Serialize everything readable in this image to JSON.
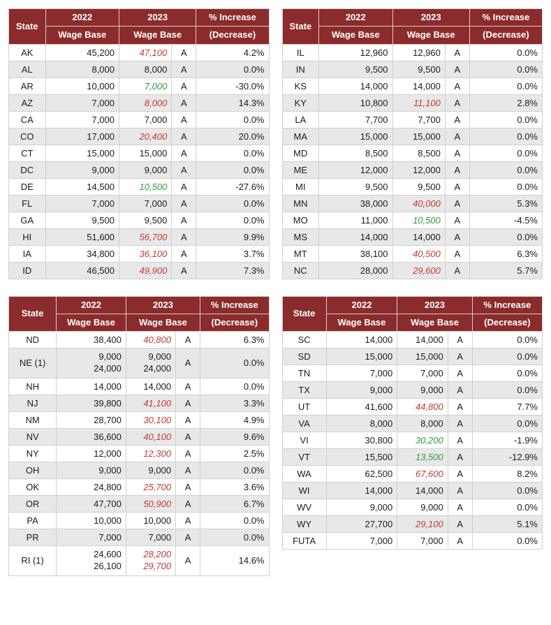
{
  "header": {
    "state": "State",
    "y2022": "2022",
    "wagebase": "Wage Base",
    "y2023": "2023",
    "pct1": "% Increase",
    "pct2": "(Decrease)"
  },
  "colors": {
    "header_bg": "#8c2b2b",
    "header_fg": "#ffffff",
    "row_alt_bg": "#e8e8e8",
    "border": "#d0d0d0",
    "increase_fg": "#c23a2e",
    "decrease_fg": "#2e9c3d",
    "text_fg": "#1a1a1a"
  },
  "tables": [
    [
      {
        "state": "AK",
        "v22": "45,200",
        "v23": "47,100",
        "dir": "up",
        "a": "A",
        "pct": "4.2%"
      },
      {
        "state": "AL",
        "v22": "8,000",
        "v23": "8,000",
        "dir": "",
        "a": "A",
        "pct": "0.0%"
      },
      {
        "state": "AR",
        "v22": "10,000",
        "v23": "7,000",
        "dir": "down",
        "a": "A",
        "pct": "-30.0%"
      },
      {
        "state": "AZ",
        "v22": "7,000",
        "v23": "8,000",
        "dir": "up",
        "a": "A",
        "pct": "14.3%"
      },
      {
        "state": "CA",
        "v22": "7,000",
        "v23": "7,000",
        "dir": "",
        "a": "A",
        "pct": "0.0%"
      },
      {
        "state": "CO",
        "v22": "17,000",
        "v23": "20,400",
        "dir": "up",
        "a": "A",
        "pct": "20.0%"
      },
      {
        "state": "CT",
        "v22": "15,000",
        "v23": "15,000",
        "dir": "",
        "a": "A",
        "pct": "0.0%"
      },
      {
        "state": "DC",
        "v22": "9,000",
        "v23": "9,000",
        "dir": "",
        "a": "A",
        "pct": "0.0%"
      },
      {
        "state": "DE",
        "v22": "14,500",
        "v23": "10,500",
        "dir": "down",
        "a": "A",
        "pct": "-27.6%"
      },
      {
        "state": "FL",
        "v22": "7,000",
        "v23": "7,000",
        "dir": "",
        "a": "A",
        "pct": "0.0%"
      },
      {
        "state": "GA",
        "v22": "9,500",
        "v23": "9,500",
        "dir": "",
        "a": "A",
        "pct": "0.0%"
      },
      {
        "state": "HI",
        "v22": "51,600",
        "v23": "56,700",
        "dir": "up",
        "a": "A",
        "pct": "9.9%"
      },
      {
        "state": "IA",
        "v22": "34,800",
        "v23": "36,100",
        "dir": "up",
        "a": "A",
        "pct": "3.7%"
      },
      {
        "state": "ID",
        "v22": "46,500",
        "v23": "49,900",
        "dir": "up",
        "a": "A",
        "pct": "7.3%"
      }
    ],
    [
      {
        "state": "IL",
        "v22": "12,960",
        "v23": "12,960",
        "dir": "",
        "a": "A",
        "pct": "0.0%"
      },
      {
        "state": "IN",
        "v22": "9,500",
        "v23": "9,500",
        "dir": "",
        "a": "A",
        "pct": "0.0%"
      },
      {
        "state": "KS",
        "v22": "14,000",
        "v23": "14,000",
        "dir": "",
        "a": "A",
        "pct": "0.0%"
      },
      {
        "state": "KY",
        "v22": "10,800",
        "v23": "11,100",
        "dir": "up",
        "a": "A",
        "pct": "2.8%"
      },
      {
        "state": "LA",
        "v22": "7,700",
        "v23": "7,700",
        "dir": "",
        "a": "A",
        "pct": "0.0%"
      },
      {
        "state": "MA",
        "v22": "15,000",
        "v23": "15,000",
        "dir": "",
        "a": "A",
        "pct": "0.0%"
      },
      {
        "state": "MD",
        "v22": "8,500",
        "v23": "8,500",
        "dir": "",
        "a": "A",
        "pct": "0.0%"
      },
      {
        "state": "ME",
        "v22": "12,000",
        "v23": "12,000",
        "dir": "",
        "a": "A",
        "pct": "0.0%"
      },
      {
        "state": "MI",
        "v22": "9,500",
        "v23": "9,500",
        "dir": "",
        "a": "A",
        "pct": "0.0%"
      },
      {
        "state": "MN",
        "v22": "38,000",
        "v23": "40,000",
        "dir": "up",
        "a": "A",
        "pct": "5.3%"
      },
      {
        "state": "MO",
        "v22": "11,000",
        "v23": "10,500",
        "dir": "down",
        "a": "A",
        "pct": "-4.5%"
      },
      {
        "state": "MS",
        "v22": "14,000",
        "v23": "14,000",
        "dir": "",
        "a": "A",
        "pct": "0.0%"
      },
      {
        "state": "MT",
        "v22": "38,100",
        "v23": "40,500",
        "dir": "up",
        "a": "A",
        "pct": "6.3%"
      },
      {
        "state": "NC",
        "v22": "28,000",
        "v23": "29,600",
        "dir": "up",
        "a": "A",
        "pct": "5.7%"
      }
    ],
    [
      {
        "state": "ND",
        "v22": "38,400",
        "v23": "40,800",
        "dir": "up",
        "a": "A",
        "pct": "6.3%"
      },
      {
        "state": "NE (1)",
        "v22": "9,000",
        "v22b": "24,000",
        "v23": "9,000",
        "v23b": "24,000",
        "dir": "",
        "a": "A",
        "pct": "0.0%"
      },
      {
        "state": "NH",
        "v22": "14,000",
        "v23": "14,000",
        "dir": "",
        "a": "A",
        "pct": "0.0%"
      },
      {
        "state": "NJ",
        "v22": "39,800",
        "v23": "41,100",
        "dir": "up",
        "a": "A",
        "pct": "3.3%"
      },
      {
        "state": "NM",
        "v22": "28,700",
        "v23": "30,100",
        "dir": "up",
        "a": "A",
        "pct": "4.9%"
      },
      {
        "state": "NV",
        "v22": "36,600",
        "v23": "40,100",
        "dir": "up",
        "a": "A",
        "pct": "9.6%"
      },
      {
        "state": "NY",
        "v22": "12,000",
        "v23": "12,300",
        "dir": "up",
        "a": "A",
        "pct": "2.5%"
      },
      {
        "state": "OH",
        "v22": "9,000",
        "v23": "9,000",
        "dir": "",
        "a": "A",
        "pct": "0.0%"
      },
      {
        "state": "OK",
        "v22": "24,800",
        "v23": "25,700",
        "dir": "up",
        "a": "A",
        "pct": "3.6%"
      },
      {
        "state": "OR",
        "v22": "47,700",
        "v23": "50,900",
        "dir": "up",
        "a": "A",
        "pct": "6.7%"
      },
      {
        "state": "PA",
        "v22": "10,000",
        "v23": "10,000",
        "dir": "",
        "a": "A",
        "pct": "0.0%"
      },
      {
        "state": "PR",
        "v22": "7,000",
        "v23": "7,000",
        "dir": "",
        "a": "A",
        "pct": "0.0%"
      },
      {
        "state": "RI (1)",
        "v22": "24,600",
        "v22b": "26,100",
        "v23": "28,200",
        "v23b": "29,700",
        "dir": "up",
        "a": "A",
        "pct": "14.6%"
      }
    ],
    [
      {
        "state": "SC",
        "v22": "14,000",
        "v23": "14,000",
        "dir": "",
        "a": "A",
        "pct": "0.0%"
      },
      {
        "state": "SD",
        "v22": "15,000",
        "v23": "15,000",
        "dir": "",
        "a": "A",
        "pct": "0.0%"
      },
      {
        "state": "TN",
        "v22": "7,000",
        "v23": "7,000",
        "dir": "",
        "a": "A",
        "pct": "0.0%"
      },
      {
        "state": "TX",
        "v22": "9,000",
        "v23": "9,000",
        "dir": "",
        "a": "A",
        "pct": "0.0%"
      },
      {
        "state": "UT",
        "v22": "41,600",
        "v23": "44,800",
        "dir": "up",
        "a": "A",
        "pct": "7.7%"
      },
      {
        "state": "VA",
        "v22": "8,000",
        "v23": "8,000",
        "dir": "",
        "a": "A",
        "pct": "0.0%"
      },
      {
        "state": "VI",
        "v22": "30,800",
        "v23": "30,200",
        "dir": "down",
        "a": "A",
        "pct": "-1.9%"
      },
      {
        "state": "VT",
        "v22": "15,500",
        "v23": "13,500",
        "dir": "down",
        "a": "A",
        "pct": "-12.9%"
      },
      {
        "state": "WA",
        "v22": "62,500",
        "v23": "67,600",
        "dir": "up",
        "a": "A",
        "pct": "8.2%"
      },
      {
        "state": "WI",
        "v22": "14,000",
        "v23": "14,000",
        "dir": "",
        "a": "A",
        "pct": "0.0%"
      },
      {
        "state": "WV",
        "v22": "9,000",
        "v23": "9,000",
        "dir": "",
        "a": "A",
        "pct": "0.0%"
      },
      {
        "state": "WY",
        "v22": "27,700",
        "v23": "29,100",
        "dir": "up",
        "a": "A",
        "pct": "5.1%"
      },
      {
        "state": "FUTA",
        "v22": "7,000",
        "v23": "7,000",
        "dir": "",
        "a": "A",
        "pct": "0.0%"
      }
    ]
  ]
}
